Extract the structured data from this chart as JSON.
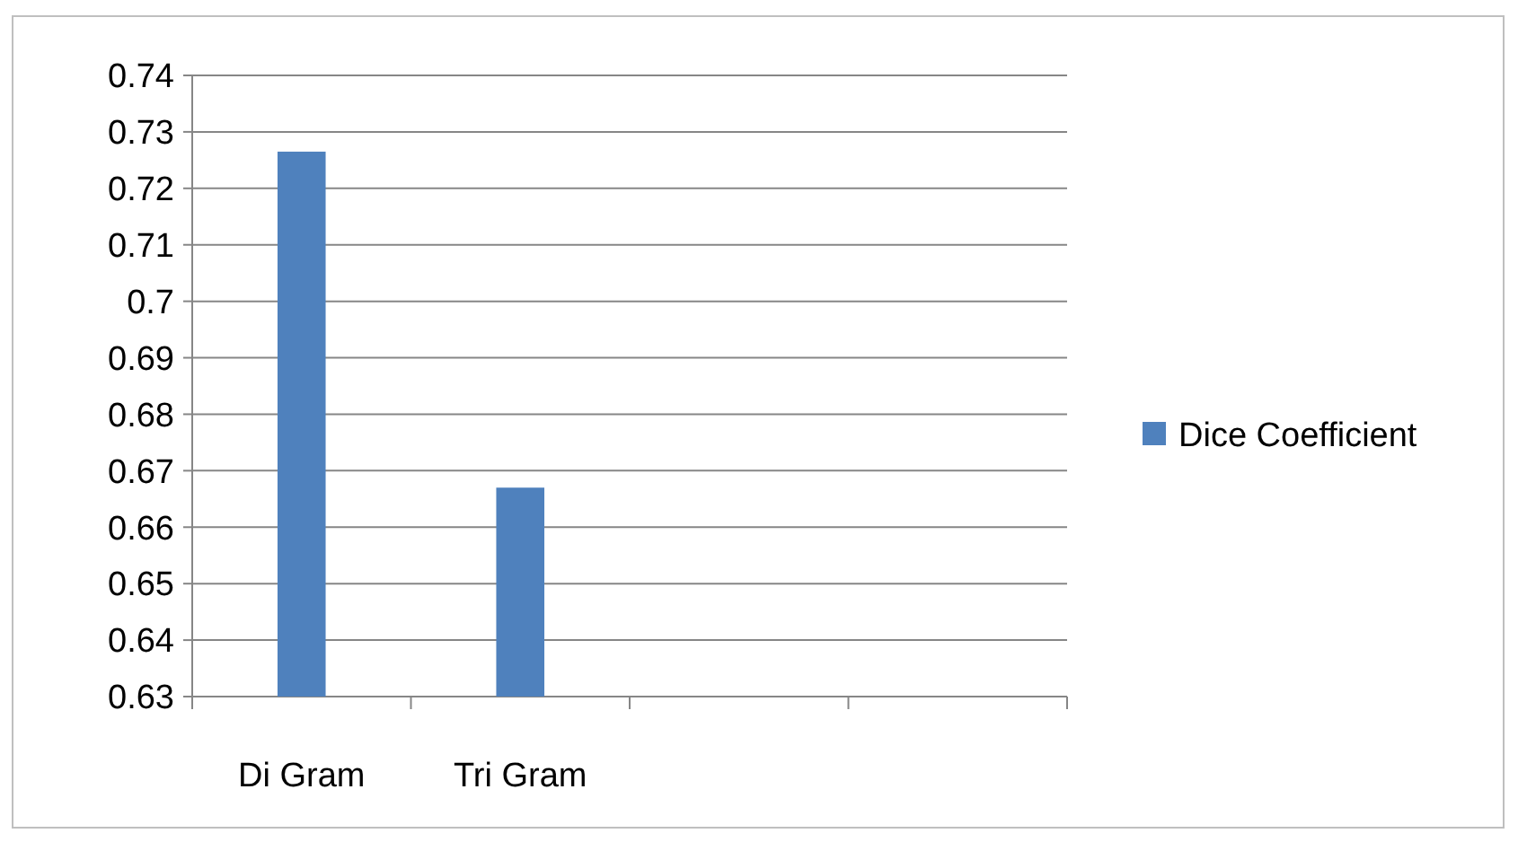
{
  "chart_data": {
    "type": "bar",
    "categories": [
      "Di Gram",
      "Tri Gram",
      null,
      null
    ],
    "series": [
      {
        "name": "Dice Coefficient",
        "color": "#4f81bd",
        "values": [
          0.7265,
          0.667,
          null,
          null
        ]
      }
    ],
    "ylim": [
      0.63,
      0.74
    ],
    "yticks": [
      0.63,
      0.64,
      0.65,
      0.66,
      0.67,
      0.68,
      0.69,
      0.7,
      0.71,
      0.72,
      0.73,
      0.74
    ],
    "grid": "y",
    "legend": "right"
  }
}
